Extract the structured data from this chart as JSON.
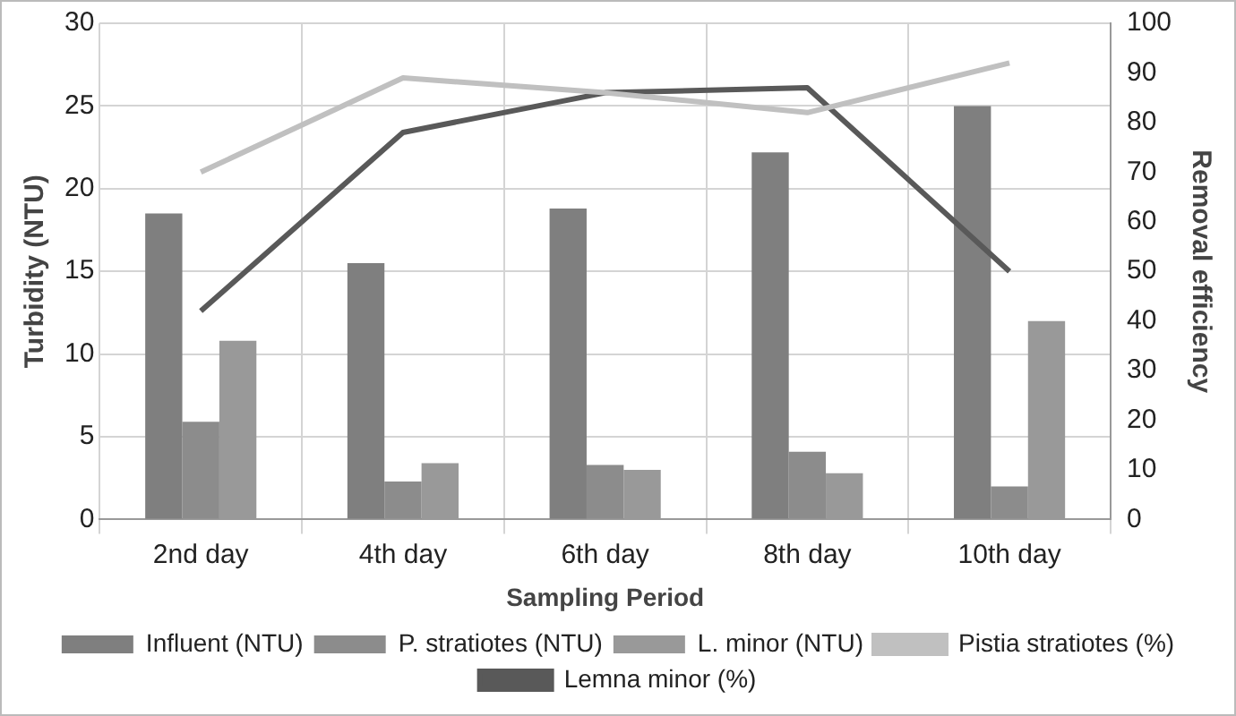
{
  "chart_data": {
    "type": "bar",
    "xlabel": "Sampling Period",
    "ylabel": "Turbidity (NTU)",
    "y2label": "Removal efficiency",
    "categories": [
      "2nd day",
      "4th day",
      "6th day",
      "8th day",
      "10th day"
    ],
    "series": [
      {
        "name": "Influent (NTU)",
        "color": "#7f7f7f",
        "values": [
          18.5,
          15.5,
          18.8,
          22.2,
          25.0
        ]
      },
      {
        "name": "P. stratiotes (NTU)",
        "color": "#8c8c8c",
        "values": [
          5.9,
          2.3,
          3.3,
          4.1,
          2.0
        ]
      },
      {
        "name": "L. minor (NTU)",
        "color": "#999999",
        "values": [
          10.8,
          3.4,
          3.0,
          2.8,
          12.0
        ]
      },
      {
        "name": "Pistia stratiotes (%)",
        "type": "line",
        "axis": "y2",
        "color": "#c0c0c0",
        "values": [
          70,
          89,
          86,
          82,
          92
        ]
      },
      {
        "name": "Lemna minor (%)",
        "type": "line",
        "axis": "y2",
        "color": "#595959",
        "values": [
          42,
          78,
          86,
          87,
          50
        ]
      }
    ],
    "ylim": [
      0,
      30
    ],
    "yticks": [
      0,
      5,
      10,
      15,
      20,
      25,
      30
    ],
    "y2lim": [
      0,
      100
    ],
    "y2ticks": [
      0,
      10,
      20,
      30,
      40,
      50,
      60,
      70,
      80,
      90,
      100
    ],
    "grid": true,
    "legend": "bottom",
    "marker": "none",
    "line_style": "solid"
  }
}
